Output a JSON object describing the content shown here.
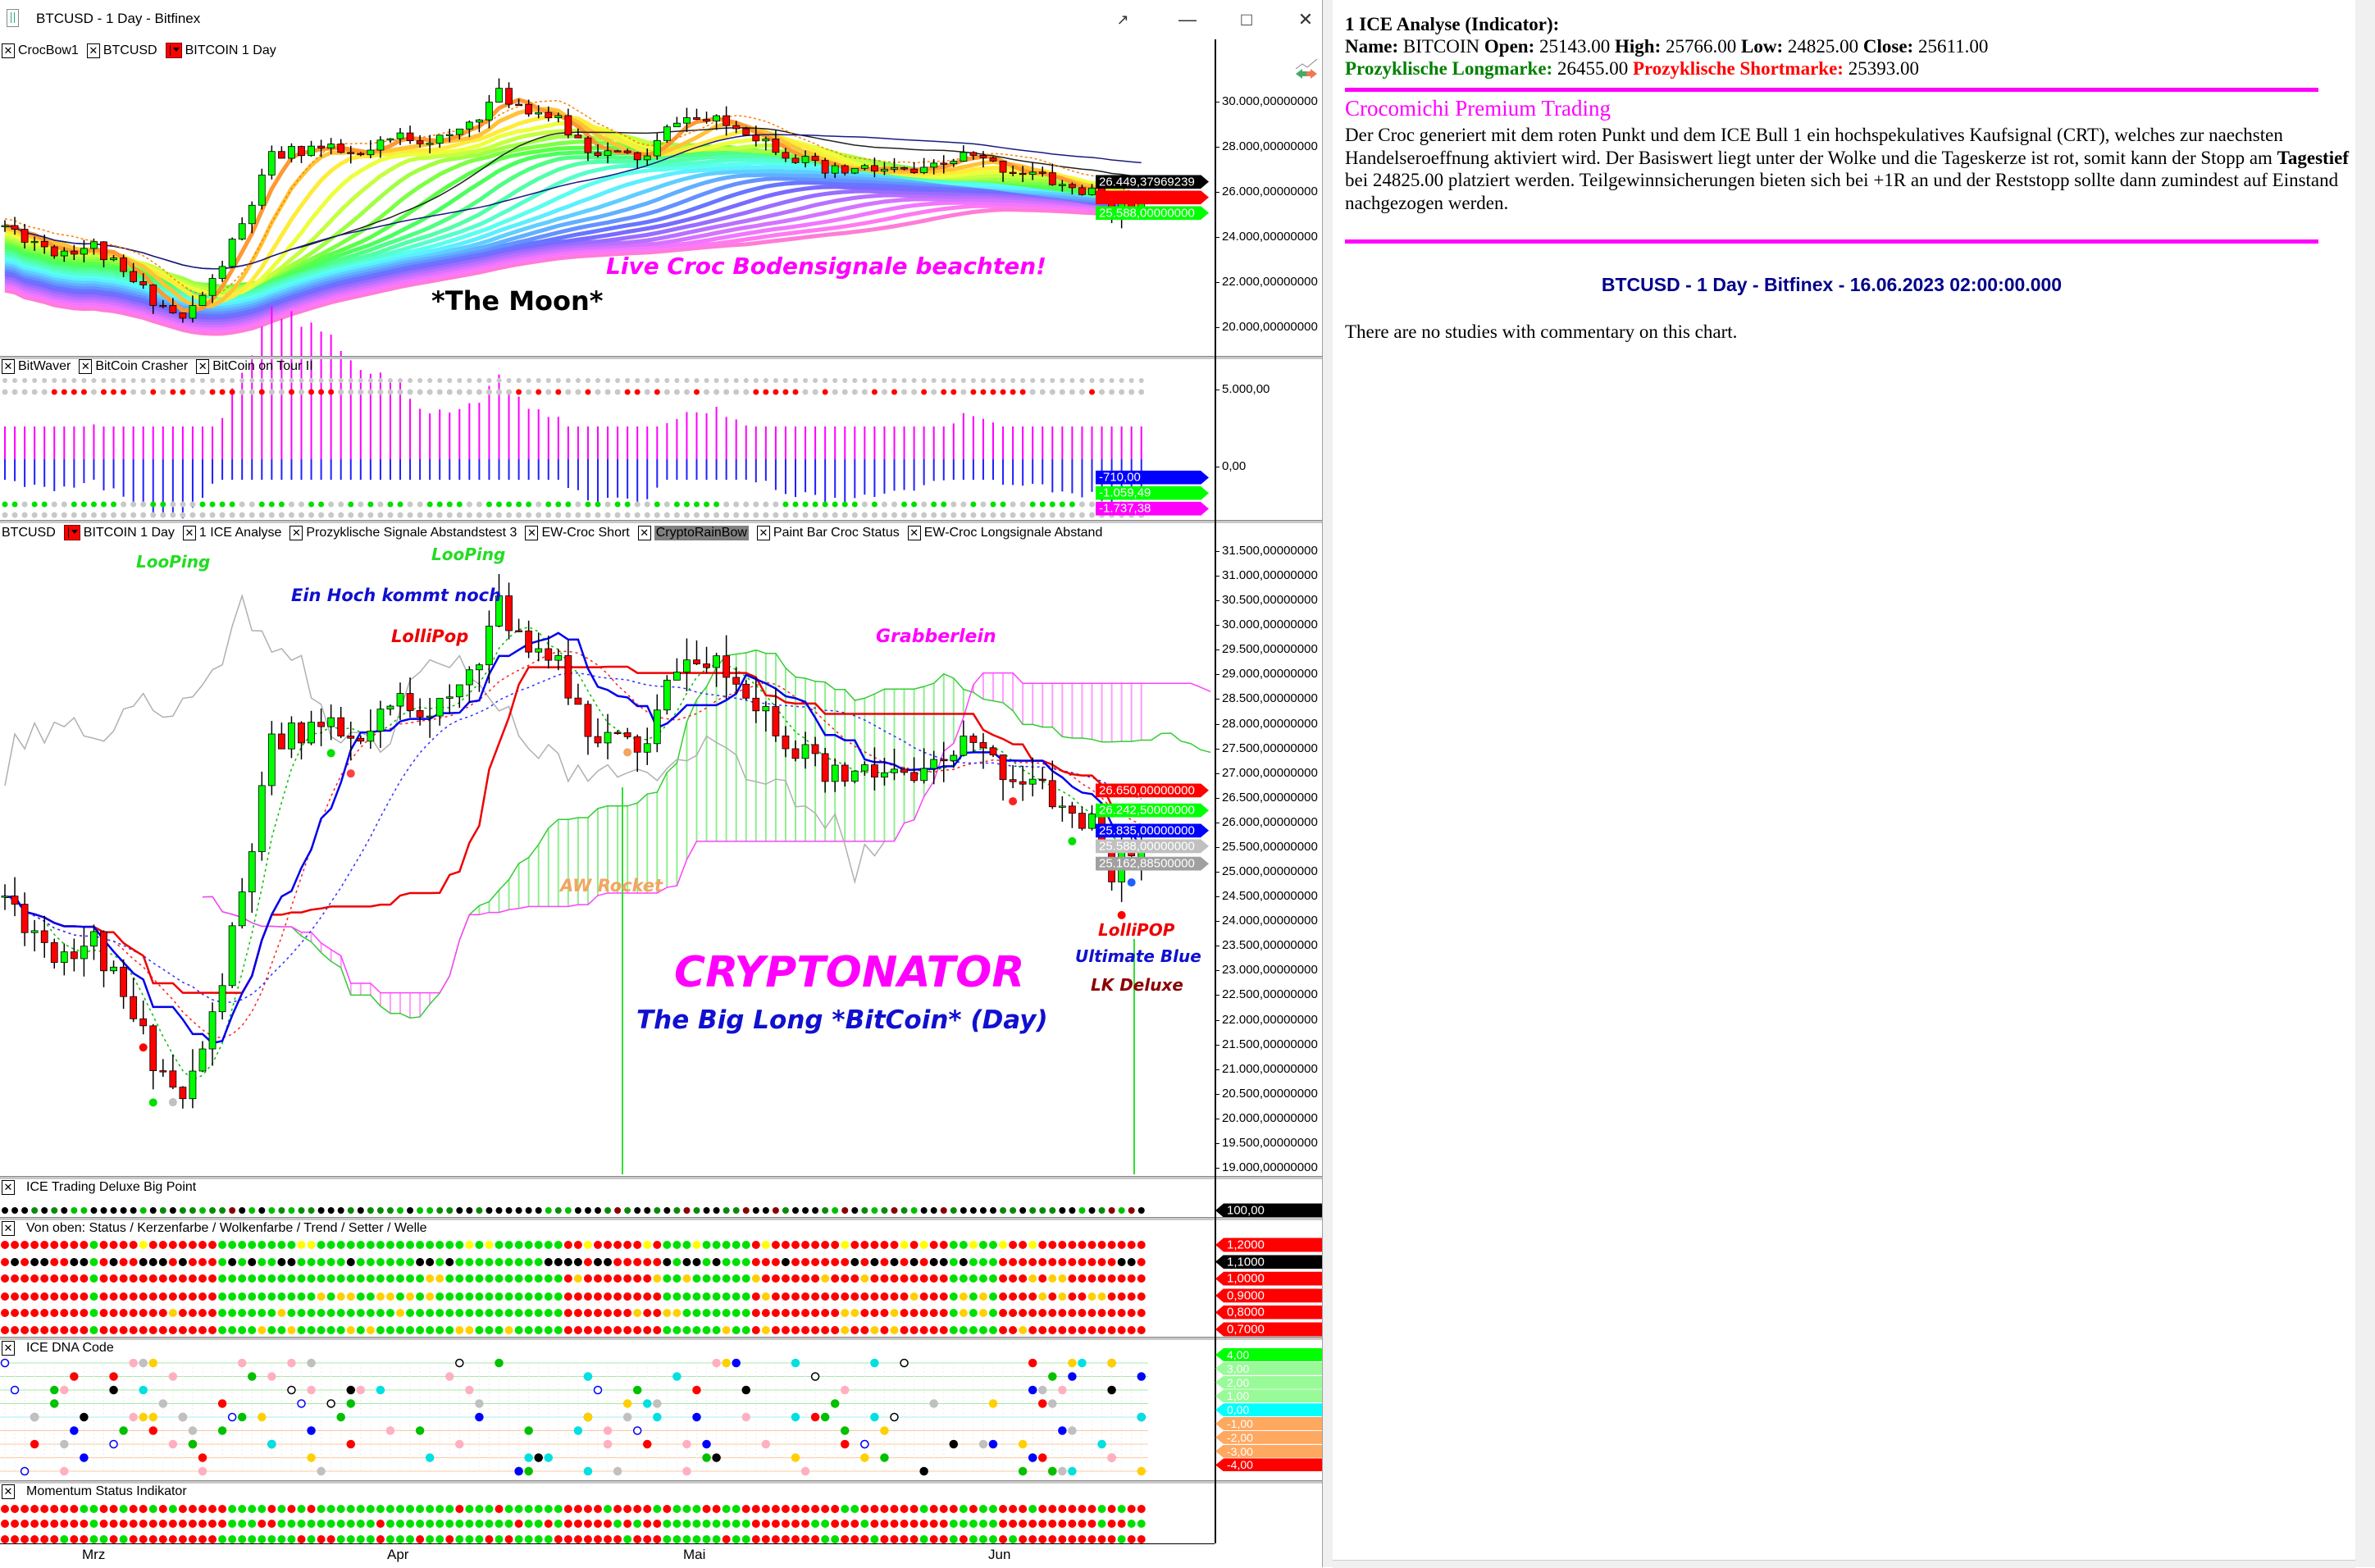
{
  "window": {
    "title": "BTCUSD - 1 Day - Bitfinex"
  },
  "top_pane": {
    "legend": [
      {
        "label": "CrocBow1",
        "kind": "close"
      },
      {
        "label": "BTCUSD",
        "kind": "close"
      },
      {
        "label": "BITCOIN  1 Day",
        "kind": "color"
      }
    ],
    "axis": [
      "30.000,00000000",
      "28.000,00000000",
      "26.000,00000000",
      "24.000,00000000",
      "22.000,00000000",
      "20.000,00000000"
    ],
    "tags": [
      {
        "text": "26.449,37969239",
        "bg": "#000000",
        "fg": "#ffffff",
        "value": 26449.38
      },
      {
        "text": "",
        "bg": "#ff0000",
        "fg": "#ffffff",
        "value": 25940
      },
      {
        "text": "25.588,00000000",
        "bg": "#00ff00",
        "fg": "#ffffff",
        "value": 25588
      }
    ],
    "annotations": {
      "bodensignale": "Live Croc Bodensignale beachten!",
      "moon": "*The Moon*"
    }
  },
  "osc_pane": {
    "legend": [
      {
        "label": "BitWaver",
        "kind": "close"
      },
      {
        "label": "BitCoin Crasher",
        "kind": "close"
      },
      {
        "label": "BitCoin on Tour II",
        "kind": "close"
      }
    ],
    "axis": [
      "5.000,00",
      "0,00"
    ],
    "tags": [
      {
        "text": "-710,00",
        "bg": "#0000ff",
        "fg": "#ffffff",
        "value": -710
      },
      {
        "text": "-1.059,49",
        "bg": "#00ff00",
        "fg": "#ffffff",
        "value": -1059.49
      },
      {
        "text": "-1.737,38",
        "bg": "#ff00ff",
        "fg": "#ffffff",
        "value": -1737.38
      }
    ]
  },
  "main_pane": {
    "legend": [
      {
        "label": "BTCUSD",
        "kind": "none"
      },
      {
        "label": "BITCOIN  1 Day",
        "kind": "color"
      },
      {
        "label": "1 ICE Analyse",
        "kind": "close"
      },
      {
        "label": "Prozyklische Signale Abstandstest 3",
        "kind": "close"
      },
      {
        "label": "EW-Croc Short",
        "kind": "close"
      },
      {
        "label": "CryptoRainBow",
        "kind": "close-highlight"
      },
      {
        "label": "Paint Bar Croc Status",
        "kind": "close"
      },
      {
        "label": "EW-Croc Longsignale Abstand",
        "kind": "close"
      }
    ],
    "axis": [
      "31.500,00000000",
      "31.000,00000000",
      "30.500,00000000",
      "30.000,00000000",
      "29.500,00000000",
      "29.000,00000000",
      "28.500,00000000",
      "28.000,00000000",
      "27.500,00000000",
      "27.000,00000000",
      "26.500,00000000",
      "26.000,00000000",
      "25.500,00000000",
      "25.000,00000000",
      "24.500,00000000",
      "24.000,00000000",
      "23.500,00000000",
      "23.000,00000000",
      "22.500,00000000",
      "22.000,00000000",
      "21.500,00000000",
      "21.000,00000000",
      "20.500,00000000",
      "20.000,00000000",
      "19.500,00000000",
      "19.000,00000000"
    ],
    "tags": [
      {
        "text": "26.650,00000000",
        "bg": "#ff0000",
        "fg": "#ffffff",
        "value": 26650
      },
      {
        "text": "26.242,50000000",
        "bg": "#00ff00",
        "fg": "#ffffff",
        "value": 26242.5
      },
      {
        "text": "25.835,00000000",
        "bg": "#0000ff",
        "fg": "#ffffff",
        "value": 25835
      },
      {
        "text": "25.588,00000000",
        "bg": "#c0c0c0",
        "fg": "#ffffff",
        "value": 25588
      },
      {
        "text": "25.162,88500000",
        "bg": "#a0a0a0",
        "fg": "#ffffff",
        "value": 25162.885
      }
    ],
    "annotations": {
      "looping_1": "LooPing",
      "looping_2": "LooPing",
      "ein_hoch": "Ein Hoch kommt noch",
      "lollipop": "LolliPop",
      "grabberlein": "Grabberlein",
      "aw_rocket": "AW Rocket",
      "cryptonator": "CRYPTONATOR",
      "big_long": "The Big Long *BitCoin* (Day)",
      "lollipop_2": "LolliPOP",
      "ultimate_blue": "Ultimate Blue",
      "lk_deluxe": "LK Deluxe"
    }
  },
  "bigpoint_pane": {
    "legend": "ICE Trading Deluxe Big Point",
    "tags": [
      {
        "text": "100,00",
        "bg": "#000000",
        "fg": "#ffffff"
      }
    ]
  },
  "status_pane": {
    "legend": "Von oben: Status / Kerzenfarbe / Wolkenfarbe / Trend / Setter / Welle",
    "tags": [
      {
        "text": "1,2000",
        "bg": "#ff0000",
        "fg": "#ffffff"
      },
      {
        "text": "1,1000",
        "bg": "#000000",
        "fg": "#ffffff"
      },
      {
        "text": "1,0000",
        "bg": "#ff0000",
        "fg": "#ffffff"
      },
      {
        "text": "0,9000",
        "bg": "#ff0000",
        "fg": "#ffffff"
      },
      {
        "text": "0,8000",
        "bg": "#ff0000",
        "fg": "#ffffff"
      },
      {
        "text": "0,7000",
        "bg": "#ff0000",
        "fg": "#ffffff"
      }
    ]
  },
  "dna_pane": {
    "legend": "ICE DNA Code",
    "tags": [
      {
        "text": "4,00",
        "bg": "#00ff00",
        "fg": "#ffffff"
      },
      {
        "text": "3,00",
        "bg": "#98fb98",
        "fg": "#ffffff"
      },
      {
        "text": "2,00",
        "bg": "#98fb98",
        "fg": "#ffffff"
      },
      {
        "text": "1,00",
        "bg": "#98fb98",
        "fg": "#ffffff"
      },
      {
        "text": "0,00",
        "bg": "#00ffff",
        "fg": "#ffffff"
      },
      {
        "text": "-1,00",
        "bg": "#ffa860",
        "fg": "#ffffff"
      },
      {
        "text": "-2,00",
        "bg": "#ffa860",
        "fg": "#ffffff"
      },
      {
        "text": "-3,00",
        "bg": "#ffa860",
        "fg": "#ffffff"
      },
      {
        "text": "-4,00",
        "bg": "#ff0000",
        "fg": "#ffffff"
      }
    ]
  },
  "momentum_pane": {
    "legend": "Momentum Status Indikator"
  },
  "x_axis": [
    "Mrz",
    "Apr",
    "Mai",
    "Jun"
  ],
  "colors": {
    "up": "#00ff00",
    "down": "#ff0000",
    "accent": "#ff00ff"
  },
  "analysis": {
    "heading": "1 ICE Analyse (Indicator):",
    "name_label": "Name:",
    "name": "BITCOIN",
    "open_label": "Open:",
    "open": "25143.00",
    "high_label": "High:",
    "high": "25766.00",
    "low_label": "Low:",
    "low": "24825.00",
    "close_label": "Close:",
    "close": "25611.00",
    "long_label": "Prozyklische Longmarke:",
    "long": "26455.00",
    "short_label": "Prozyklische Shortmarke:",
    "short": "25393.00",
    "premium_title": "Crocomichi Premium Trading",
    "text_1": "Der Croc generiert mit dem roten Punkt und dem ICE Bull 1 ein hochspekulatives Kaufsignal (CRT), welches zur naechsten Handelseroeffnung aktiviert wird. Der Basiswert liegt unter der Wolke und die Tageskerze ist rot, somit kann der Stopp am ",
    "text_bold": "Tagestief",
    "text_2": " bei 24825.00 platziert werden. Teilgewinnsicherungen bieten sich bei +1R an und der Reststopp sollte dann zumindest auf Einstand nachgezogen werden.",
    "chart_title": "BTCUSD - 1 Day - Bitfinex - 16.06.2023 02:00:00.000",
    "no_studies": "There are no studies with commentary on this chart."
  }
}
